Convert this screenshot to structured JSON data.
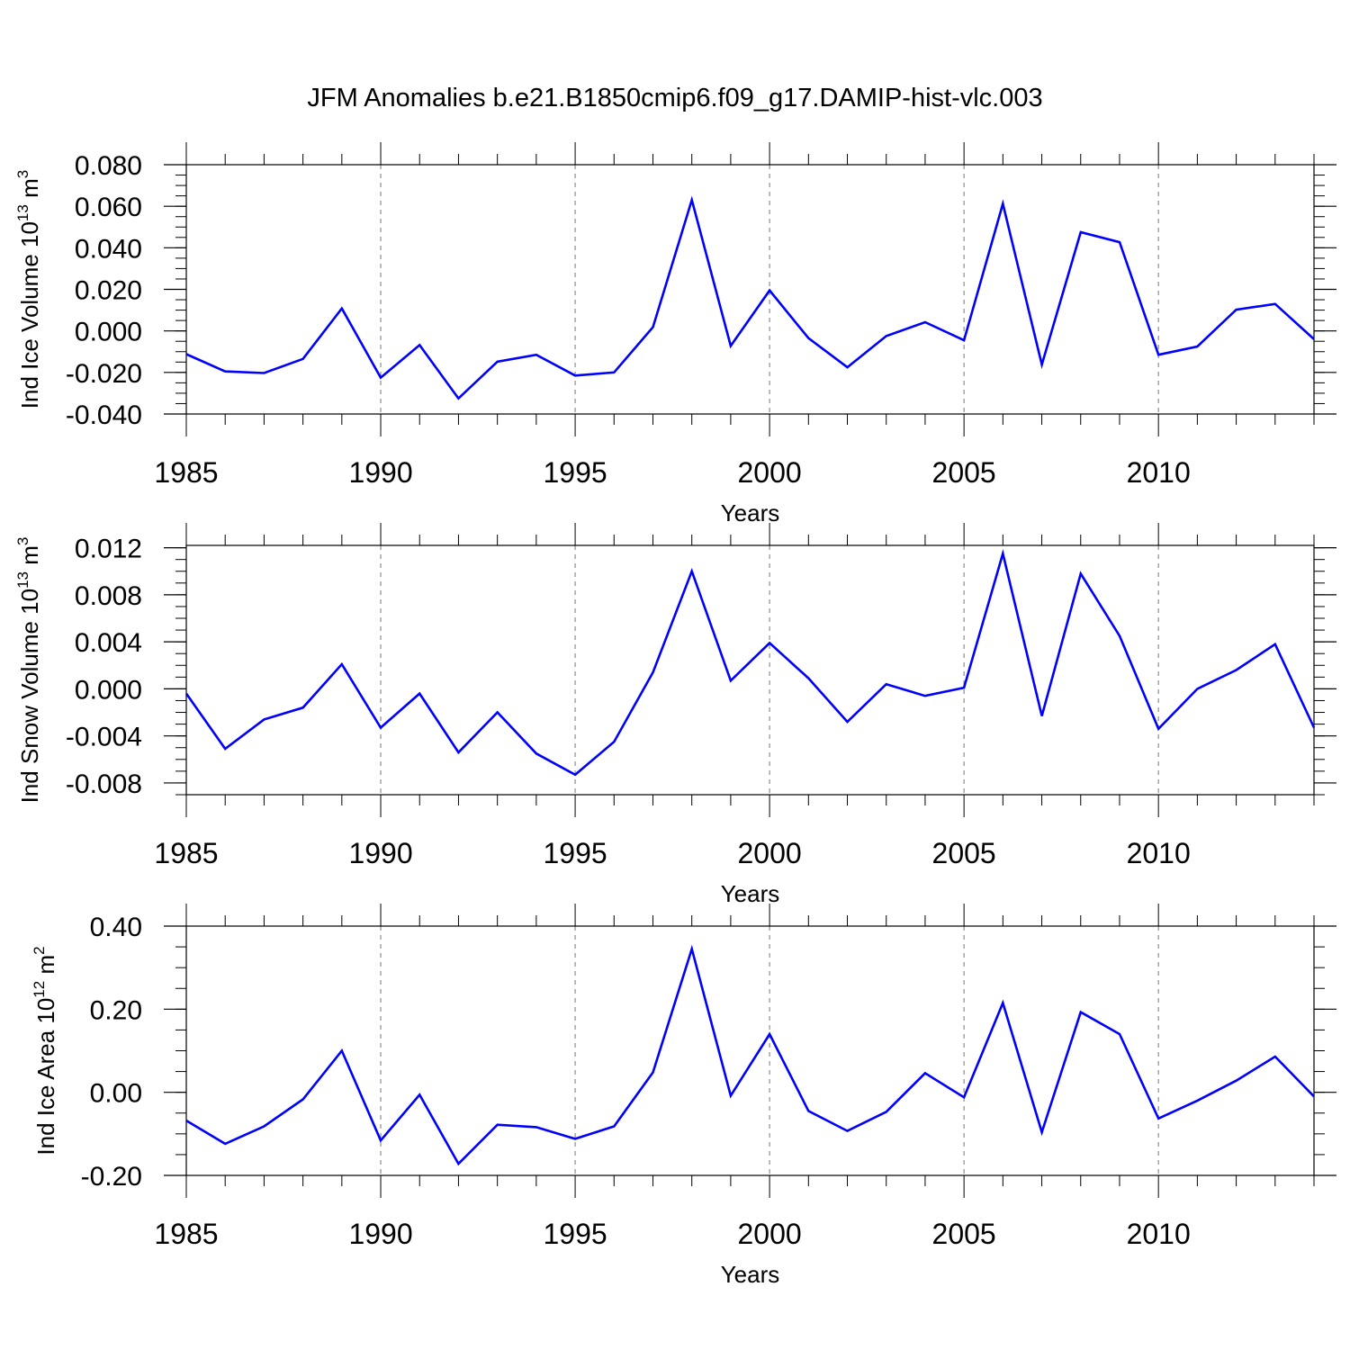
{
  "title": "JFM Anomalies b.e21.B1850cmip6.f09_g17.DAMIP-hist-vlc.003",
  "colors": {
    "line": "#0000ff",
    "axis": "#000000",
    "grid": "#8c8c8c"
  },
  "chart_data": [
    {
      "type": "line",
      "ylabel": {
        "text": "Ind Ice Volume 10",
        "exp": "13",
        "unit": "m",
        "unit_exp": "3"
      },
      "xlabel": "Years",
      "xlim": [
        1985,
        2014
      ],
      "ylim": [
        -0.04,
        0.08
      ],
      "yticks": [
        -0.04,
        -0.02,
        0.0,
        0.02,
        0.04,
        0.06,
        0.08
      ],
      "ytick_labels": [
        "-0.040",
        "-0.020",
        "0.000",
        "0.020",
        "0.040",
        "0.060",
        "0.080"
      ],
      "yminor_step": 0.005,
      "xticks": [
        1985,
        1990,
        1995,
        2000,
        2005,
        2010
      ],
      "xtick_labels": [
        "1985",
        "1990",
        "1995",
        "2000",
        "2005",
        "2010"
      ],
      "grid_x": [
        1990,
        1995,
        2000,
        2005,
        2010
      ],
      "series": [
        {
          "name": "Ind Ice Volume",
          "x": [
            1985,
            1986,
            1987,
            1988,
            1989,
            1990,
            1991,
            1992,
            1993,
            1994,
            1995,
            1996,
            1997,
            1998,
            1999,
            2000,
            2001,
            2002,
            2003,
            2004,
            2005,
            2006,
            2007,
            2008,
            2009,
            2010,
            2011,
            2012,
            2013,
            2014
          ],
          "y": [
            -0.0112,
            -0.0195,
            -0.0203,
            -0.0135,
            0.0108,
            -0.0225,
            -0.0068,
            -0.0325,
            -0.0148,
            -0.0115,
            -0.0215,
            -0.02,
            0.0018,
            0.063,
            -0.0072,
            0.0195,
            -0.0035,
            -0.0175,
            -0.0025,
            0.0042,
            -0.0045,
            0.0612,
            -0.0162,
            0.0475,
            0.0427,
            -0.0115,
            -0.0075,
            0.0102,
            0.013,
            -0.004
          ]
        }
      ]
    },
    {
      "type": "line",
      "ylabel": {
        "text": "Ind Snow Volume 10",
        "exp": "13",
        "unit": "m",
        "unit_exp": "3"
      },
      "xlabel": "Years",
      "xlim": [
        1985,
        2014
      ],
      "ylim": [
        -0.009,
        0.0122
      ],
      "yticks": [
        -0.008,
        -0.004,
        0.0,
        0.004,
        0.008,
        0.012
      ],
      "ytick_labels": [
        "-0.008",
        "-0.004",
        "0.000",
        "0.004",
        "0.008",
        "0.012"
      ],
      "yminor_step": 0.001,
      "xticks": [
        1985,
        1990,
        1995,
        2000,
        2005,
        2010
      ],
      "xtick_labels": [
        "1985",
        "1990",
        "1995",
        "2000",
        "2005",
        "2010"
      ],
      "grid_x": [
        1990,
        1995,
        2000,
        2005,
        2010
      ],
      "series": [
        {
          "name": "Ind Snow Volume",
          "x": [
            1985,
            1986,
            1987,
            1988,
            1989,
            1990,
            1991,
            1992,
            1993,
            1994,
            1995,
            1996,
            1997,
            1998,
            1999,
            2000,
            2001,
            2002,
            2003,
            2004,
            2005,
            2006,
            2007,
            2008,
            2009,
            2010,
            2011,
            2012,
            2013,
            2014
          ],
          "y": [
            -0.0004,
            -0.0051,
            -0.0026,
            -0.0016,
            0.0021,
            -0.0033,
            -0.0004,
            -0.0054,
            -0.002,
            -0.0055,
            -0.0073,
            -0.0045,
            0.0014,
            0.01,
            0.0007,
            0.0039,
            0.0009,
            -0.0028,
            0.0004,
            -0.0006,
            0.0001,
            0.0115,
            -0.0023,
            0.0098,
            0.0045,
            -0.0034,
            0.0,
            0.0016,
            0.0038,
            -0.0033
          ]
        }
      ]
    },
    {
      "type": "line",
      "ylabel": {
        "text": "Ind Ice Area 10",
        "exp": "12",
        "unit": "m",
        "unit_exp": "2"
      },
      "xlabel": "Years",
      "xlim": [
        1985,
        2014
      ],
      "ylim": [
        -0.2,
        0.4
      ],
      "yticks": [
        -0.2,
        0.0,
        0.2,
        0.4
      ],
      "ytick_labels": [
        "-0.20",
        "0.00",
        "0.20",
        "0.40"
      ],
      "yminor_step": 0.05,
      "xticks": [
        1985,
        1990,
        1995,
        2000,
        2005,
        2010
      ],
      "xtick_labels": [
        "1985",
        "1990",
        "1995",
        "2000",
        "2005",
        "2010"
      ],
      "grid_x": [
        1990,
        1995,
        2000,
        2005,
        2010
      ],
      "series": [
        {
          "name": "Ind Ice Area",
          "x": [
            1985,
            1986,
            1987,
            1988,
            1989,
            1990,
            1991,
            1992,
            1993,
            1994,
            1995,
            1996,
            1997,
            1998,
            1999,
            2000,
            2001,
            2002,
            2003,
            2004,
            2005,
            2006,
            2007,
            2008,
            2009,
            2010,
            2011,
            2012,
            2013,
            2014
          ],
          "y": [
            -0.068,
            -0.124,
            -0.082,
            -0.017,
            0.1,
            -0.116,
            -0.006,
            -0.172,
            -0.078,
            -0.084,
            -0.112,
            -0.082,
            0.048,
            0.345,
            -0.008,
            0.14,
            -0.045,
            -0.093,
            -0.047,
            0.046,
            -0.012,
            0.215,
            -0.096,
            0.193,
            0.14,
            -0.063,
            -0.02,
            0.028,
            0.086,
            -0.01
          ]
        }
      ]
    }
  ]
}
